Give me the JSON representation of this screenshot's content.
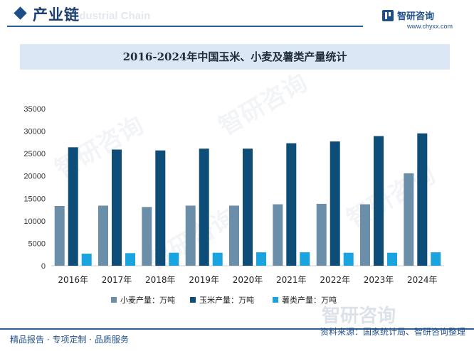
{
  "header": {
    "section_title": "产业链",
    "ghost_text": "Industrial Chain",
    "brand_name": "智研咨询",
    "brand_url": "www.chyxx.com"
  },
  "chart_title": "2016-2024年中国玉米、小麦及薯类产量统计",
  "chart_data": {
    "type": "bar",
    "title": "2016-2024年中国玉米、小麦及薯类产量统计",
    "categories": [
      "2016年",
      "2017年",
      "2018年",
      "2019年",
      "2020年",
      "2021年",
      "2022年",
      "2023年",
      "2024年"
    ],
    "series": [
      {
        "name": "小麦产量：万吨",
        "color": "#6b8fa8",
        "values": [
          13300,
          13400,
          13100,
          13400,
          13400,
          13700,
          13800,
          13700,
          20600
        ]
      },
      {
        "name": "玉米产量：万吨",
        "color": "#0e4d78",
        "values": [
          26400,
          25900,
          25700,
          26100,
          26100,
          27300,
          27700,
          28900,
          29500
        ]
      },
      {
        "name": "薯类产量：万吨",
        "color": "#19a4e0",
        "values": [
          2700,
          2800,
          2900,
          2900,
          3000,
          3000,
          2900,
          2900,
          3000
        ]
      }
    ],
    "yticks": [
      "0",
      "5000",
      "10000",
      "15000",
      "20000",
      "25000",
      "30000",
      "35000"
    ],
    "ylim": [
      0,
      35000
    ],
    "grid": false,
    "legend": "bottom"
  },
  "footer": {
    "left": "精品报告 · 专项定制 · 品质服务",
    "right": "资料来源：国家统计局、智研咨询整理"
  },
  "watermark": {
    "text": "智研咨询"
  }
}
